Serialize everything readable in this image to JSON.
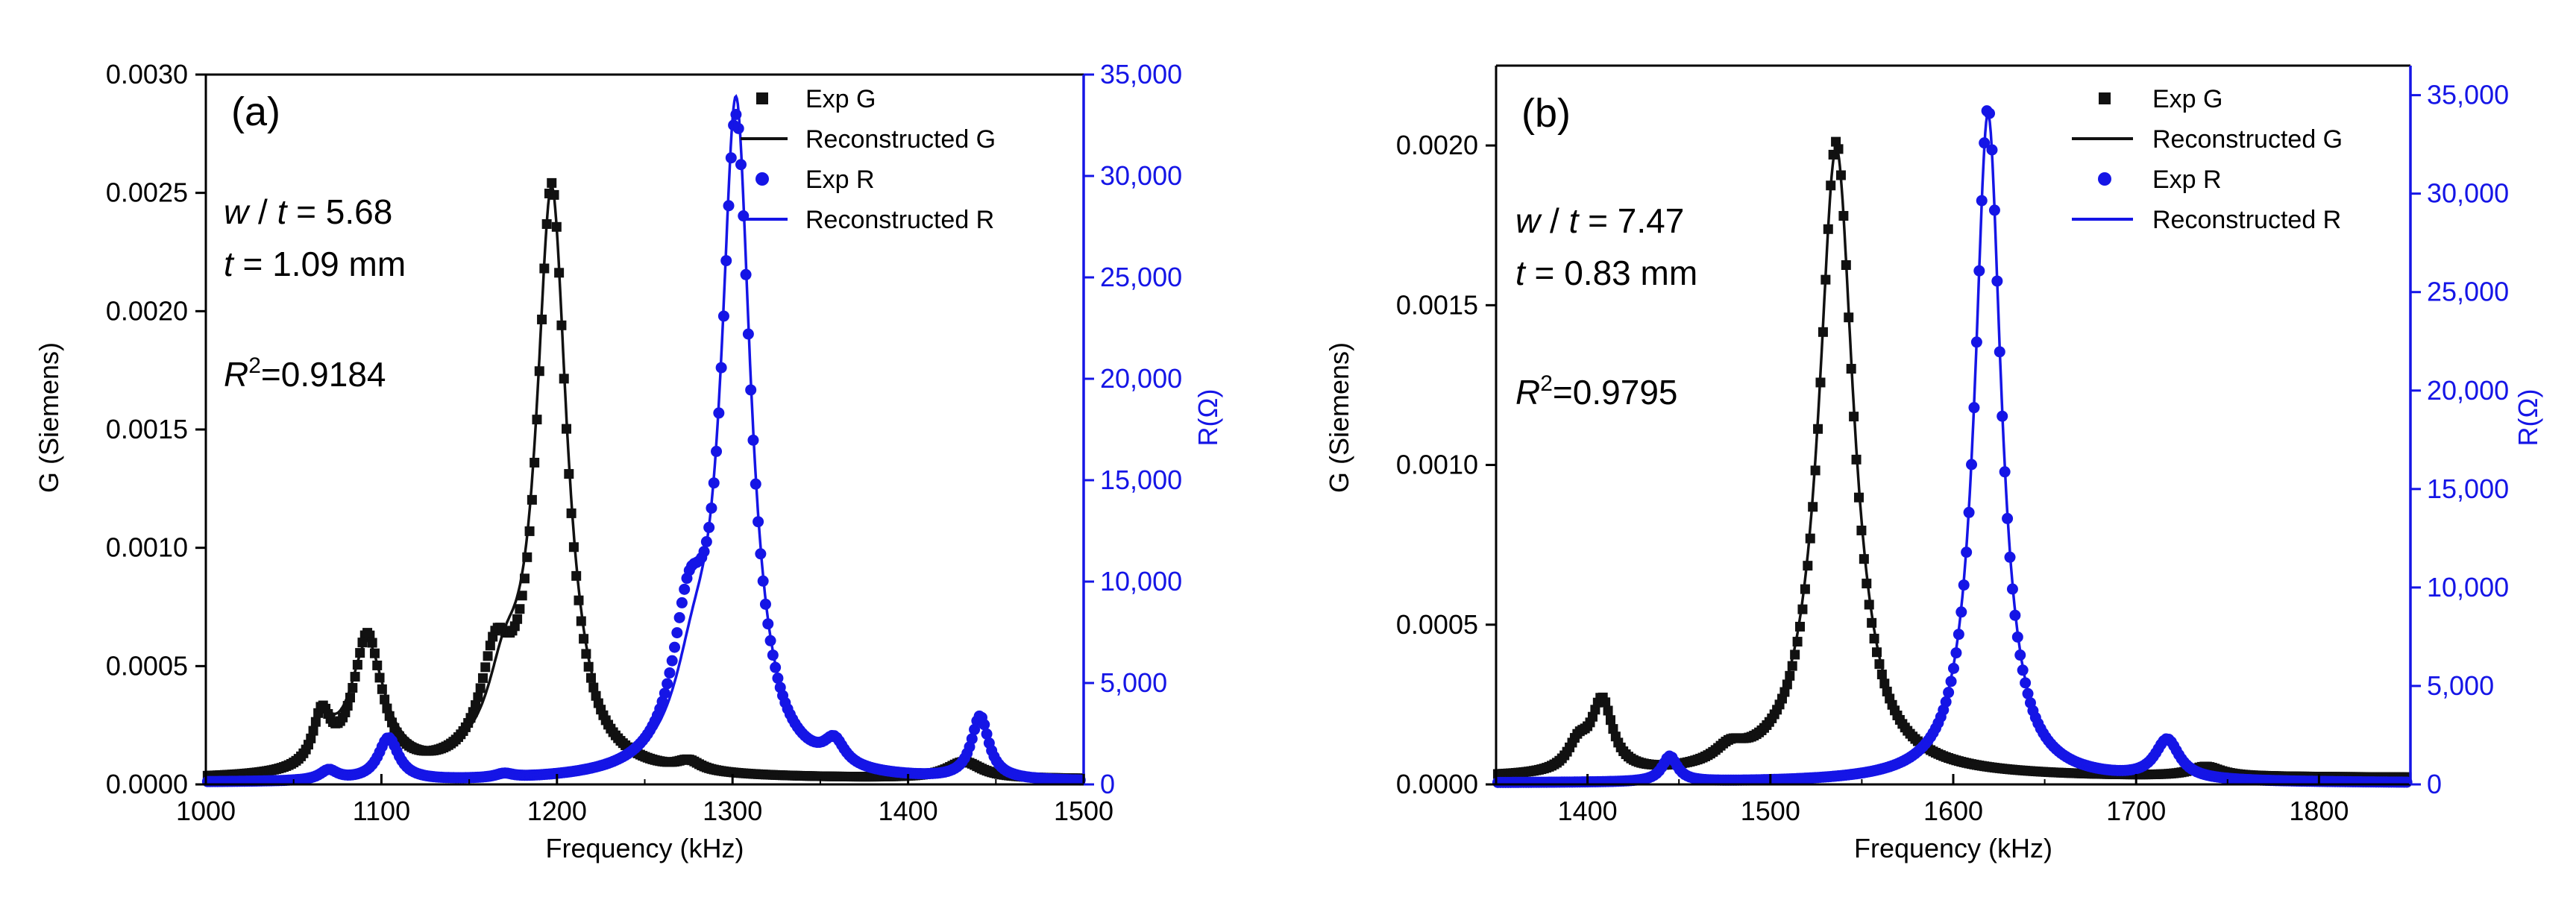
{
  "colors": {
    "g_series": "#111111",
    "r_series": "#1515e6",
    "axis": "#000000"
  },
  "chart_data": [
    {
      "type": "line",
      "panel_label": "(a)",
      "xlabel": "Frequency (kHz)",
      "ylabel": "G (Siemens)",
      "y2label": "R(Ω)",
      "xlim": [
        1000,
        1500
      ],
      "ylim": [
        0,
        0.003
      ],
      "y2lim": [
        0,
        35000
      ],
      "xticks": [
        1000,
        1100,
        1200,
        1300,
        1400,
        1500
      ],
      "xtick_labels": [
        "1000",
        "1100",
        "1200",
        "1300",
        "1400",
        "1500"
      ],
      "yticks": [
        0,
        0.0005,
        0.001,
        0.0015,
        0.002,
        0.0025,
        0.003
      ],
      "ytick_labels": [
        "0.0000",
        "0.0005",
        "0.0010",
        "0.0015",
        "0.0020",
        "0.0025",
        "0.0030"
      ],
      "y2ticks": [
        0,
        5000,
        10000,
        15000,
        20000,
        25000,
        30000,
        35000
      ],
      "y2tick_labels": [
        "0",
        "5,000",
        "10,000",
        "15,000",
        "20,000",
        "25,000",
        "30,000",
        "35,000"
      ],
      "annotations": {
        "w_var": "w",
        "slash": " / ",
        "t_var": "t",
        "ratio_value": " = 5.68",
        "thickness_var": "t",
        "thickness_value": " =  1.09 mm",
        "r2_var": "R",
        "r2_exp": "2",
        "r2_value": "=0.9184"
      },
      "legend": {
        "position": "top-right",
        "entries": [
          {
            "label": "Exp G",
            "marker": "square",
            "series": "G"
          },
          {
            "label": "Reconstructed G",
            "marker": "line",
            "series": "G"
          },
          {
            "label": "Exp R",
            "marker": "circle",
            "series": "R"
          },
          {
            "label": "Reconstructed R",
            "marker": "line",
            "series": "R"
          }
        ]
      },
      "series": [
        {
          "name": "G",
          "axis": "left",
          "baseline": 2e-05,
          "peaks": [
            {
              "center": 1066,
              "amp": 0.00022,
              "width": 6
            },
            {
              "center": 1092,
              "amp": 0.00058,
              "width": 10
            },
            {
              "center": 1165,
              "amp": 0.0004,
              "width": 10
            },
            {
              "center": 1197,
              "amp": 0.00248,
              "width": 10
            },
            {
              "center": 1275,
              "amp": 4e-05,
              "width": 8
            },
            {
              "center": 1432,
              "amp": 7e-05,
              "width": 12
            }
          ],
          "fit_peaks": [
            {
              "center": 1066,
              "amp": 0.00018,
              "width": 8
            },
            {
              "center": 1092,
              "amp": 0.00054,
              "width": 12
            },
            {
              "center": 1170,
              "amp": 0.0003,
              "width": 12
            },
            {
              "center": 1197,
              "amp": 0.00245,
              "width": 10.5
            },
            {
              "center": 1275,
              "amp": 4e-05,
              "width": 8
            },
            {
              "center": 1432,
              "amp": 7e-05,
              "width": 12
            }
          ]
        },
        {
          "name": "R",
          "axis": "right",
          "baseline": 80,
          "peaks": [
            {
              "center": 1070,
              "amp": 500,
              "width": 6
            },
            {
              "center": 1104,
              "amp": 2100,
              "width": 7
            },
            {
              "center": 1170,
              "amp": 200,
              "width": 6
            },
            {
              "center": 1275,
              "amp": 6500,
              "width": 11
            },
            {
              "center": 1302,
              "amp": 32000,
              "width": 10
            },
            {
              "center": 1358,
              "amp": 1200,
              "width": 7
            },
            {
              "center": 1441,
              "amp": 3100,
              "width": 6
            }
          ],
          "fit_peaks": [
            {
              "center": 1070,
              "amp": 450,
              "width": 6
            },
            {
              "center": 1104,
              "amp": 2000,
              "width": 7
            },
            {
              "center": 1170,
              "amp": 180,
              "width": 6
            },
            {
              "center": 1278,
              "amp": 4000,
              "width": 14
            },
            {
              "center": 1302,
              "amp": 32800,
              "width": 10
            },
            {
              "center": 1358,
              "amp": 900,
              "width": 8
            },
            {
              "center": 1441,
              "amp": 3000,
              "width": 6.5
            }
          ]
        }
      ]
    },
    {
      "type": "line",
      "panel_label": "(b)",
      "xlabel": "Frequency (kHz)",
      "ylabel": "G (Siemens)",
      "y2label": "R(Ω)",
      "xlim": [
        1350,
        1850
      ],
      "ylim": [
        0,
        0.00225
      ],
      "y2lim": [
        0,
        36500
      ],
      "xticks": [
        1400,
        1500,
        1600,
        1700,
        1800
      ],
      "xtick_labels": [
        "1400",
        "1500",
        "1600",
        "1700",
        "1800"
      ],
      "yticks": [
        0,
        0.0005,
        0.001,
        0.0015,
        0.002
      ],
      "ytick_labels": [
        "0.0000",
        "0.0005",
        "0.0010",
        "0.0015",
        "0.0020"
      ],
      "y2ticks": [
        0,
        5000,
        10000,
        15000,
        20000,
        25000,
        30000,
        35000
      ],
      "y2tick_labels": [
        "0",
        "5,000",
        "10,000",
        "15,000",
        "20,000",
        "25,000",
        "30,000",
        "35,000"
      ],
      "annotations": {
        "w_var": "w",
        "slash": " / ",
        "t_var": "t",
        "ratio_value": " = 7.47",
        "thickness_var": "t",
        "thickness_value": " =  0.83 mm",
        "r2_var": "R",
        "r2_exp": "2",
        "r2_value": "=0.9795"
      },
      "legend": {
        "position": "top-right",
        "entries": [
          {
            "label": "Exp G",
            "marker": "square",
            "series": "G"
          },
          {
            "label": "Reconstructed G",
            "marker": "line",
            "series": "G"
          },
          {
            "label": "Exp R",
            "marker": "circle",
            "series": "R"
          },
          {
            "label": "Reconstructed R",
            "marker": "line",
            "series": "R"
          }
        ]
      },
      "series": [
        {
          "name": "G",
          "axis": "left",
          "baseline": 2e-05,
          "peaks": [
            {
              "center": 1395,
              "amp": 8e-05,
              "width": 7
            },
            {
              "center": 1408,
              "amp": 0.00022,
              "width": 7
            },
            {
              "center": 1478,
              "amp": 5e-05,
              "width": 10
            },
            {
              "center": 1536,
              "amp": 0.00199,
              "width": 11
            },
            {
              "center": 1738,
              "amp": 3e-05,
              "width": 10
            }
          ],
          "fit_peaks": [
            {
              "center": 1395,
              "amp": 7e-05,
              "width": 7
            },
            {
              "center": 1408,
              "amp": 0.0002,
              "width": 8
            },
            {
              "center": 1478,
              "amp": 4e-05,
              "width": 12
            },
            {
              "center": 1536,
              "amp": 0.00197,
              "width": 11.5
            },
            {
              "center": 1738,
              "amp": 3e-05,
              "width": 10
            }
          ]
        },
        {
          "name": "R",
          "axis": "right",
          "baseline": 60,
          "peaks": [
            {
              "center": 1445,
              "amp": 1300,
              "width": 5
            },
            {
              "center": 1619,
              "amp": 34300,
              "width": 8.5
            },
            {
              "center": 1717,
              "amp": 2000,
              "width": 8
            }
          ],
          "fit_peaks": [
            {
              "center": 1445,
              "amp": 1200,
              "width": 5.5
            },
            {
              "center": 1619,
              "amp": 34000,
              "width": 8.7
            },
            {
              "center": 1717,
              "amp": 1900,
              "width": 8.5
            }
          ]
        }
      ]
    }
  ]
}
